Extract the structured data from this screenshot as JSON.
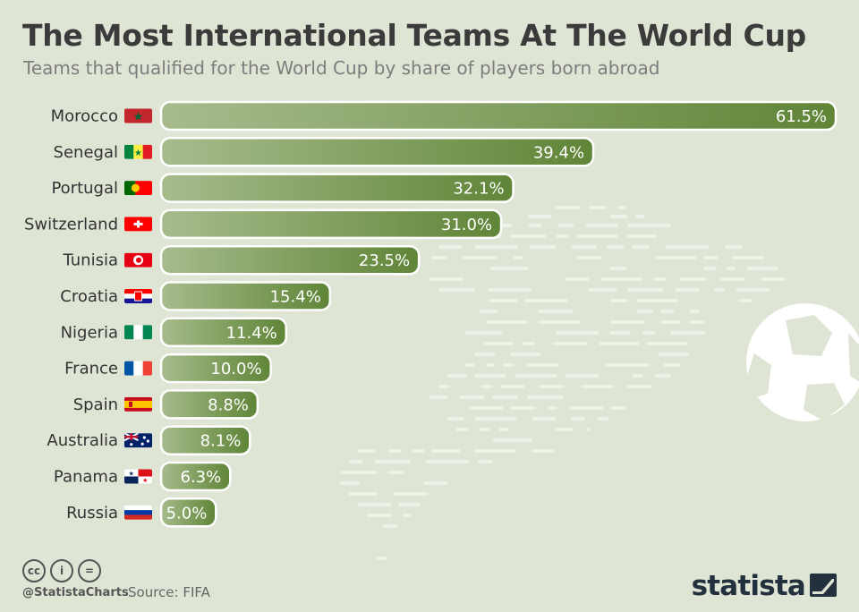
{
  "header": {
    "title": "The Most International Teams At The World Cup",
    "subtitle": "Teams that qualified for the World Cup by share of players born abroad"
  },
  "chart_data": {
    "type": "bar",
    "orientation": "horizontal",
    "categories": [
      "Morocco",
      "Senegal",
      "Portugal",
      "Switzerland",
      "Tunisia",
      "Croatia",
      "Nigeria",
      "France",
      "Spain",
      "Australia",
      "Panama",
      "Russia"
    ],
    "values": [
      61.5,
      39.4,
      32.1,
      31.0,
      23.5,
      15.4,
      11.4,
      10.0,
      8.8,
      8.1,
      6.3,
      5.0
    ],
    "value_labels": [
      "61.5%",
      "39.4%",
      "32.1%",
      "31.0%",
      "23.5%",
      "15.4%",
      "11.4%",
      "10.0%",
      "8.8%",
      "8.1%",
      "6.3%",
      "5.0%"
    ],
    "unit": "%",
    "xlim": [
      0,
      61.5
    ],
    "grid": false,
    "bar_color_start": "#a7bb8c",
    "bar_color_end": "#5f8537"
  },
  "flags": [
    "morocco-flag-icon",
    "senegal-flag-icon",
    "portugal-flag-icon",
    "switzerland-flag-icon",
    "tunisia-flag-icon",
    "croatia-flag-icon",
    "nigeria-flag-icon",
    "france-flag-icon",
    "spain-flag-icon",
    "australia-flag-icon",
    "panama-flag-icon",
    "russia-flag-icon"
  ],
  "footer": {
    "cc_icons": [
      "cc",
      "i",
      "="
    ],
    "handle": "@StatistaCharts",
    "source": "Source: FIFA",
    "brand": "statista"
  }
}
